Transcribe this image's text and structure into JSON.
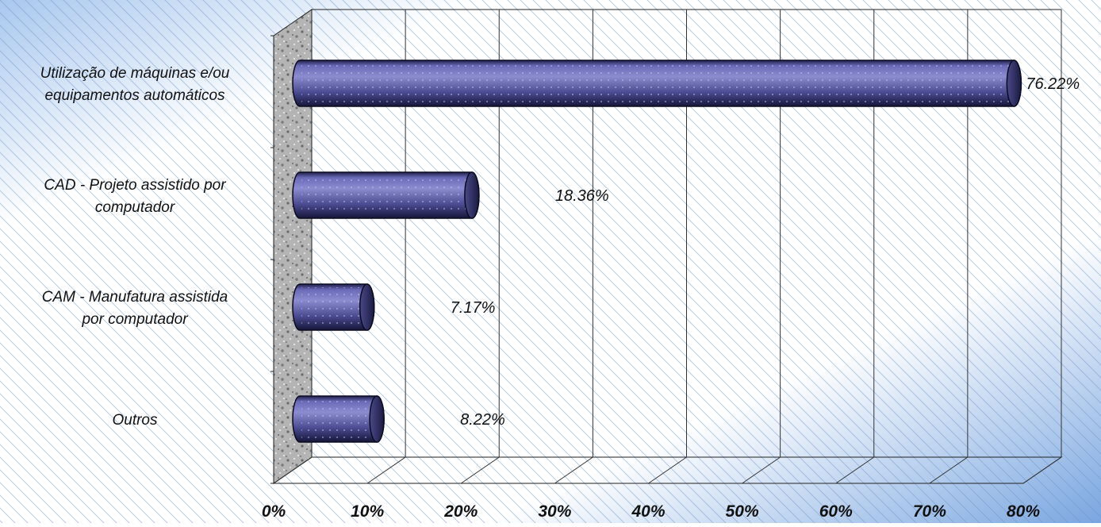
{
  "chart_data": {
    "type": "bar",
    "orientation": "horizontal",
    "title": "",
    "xlabel": "",
    "ylabel": "",
    "xlim": [
      0,
      80
    ],
    "x_ticks": [
      "0%",
      "10%",
      "20%",
      "30%",
      "40%",
      "50%",
      "60%",
      "70%",
      "80%"
    ],
    "grid": true,
    "legend": "none",
    "categories": [
      [
        "Utilização de máquinas e/ou",
        "equipamentos automáticos"
      ],
      [
        "CAD - Projeto assistido por",
        "computador"
      ],
      [
        "CAM - Manufatura assistida",
        "por computador"
      ],
      [
        "Outros"
      ]
    ],
    "values": [
      76.22,
      18.36,
      7.17,
      8.22
    ],
    "value_labels": [
      "76.22%",
      "18.36%",
      "7.17%",
      "8.22%"
    ],
    "colors": {
      "bar_top": "#8c8cd0",
      "bar_mid": "#4a4a90",
      "bar_bottom": "#15153a",
      "background_light": "#ffffff",
      "background_blue": "#7aa6e0",
      "wall": "#a8a8a8"
    }
  }
}
